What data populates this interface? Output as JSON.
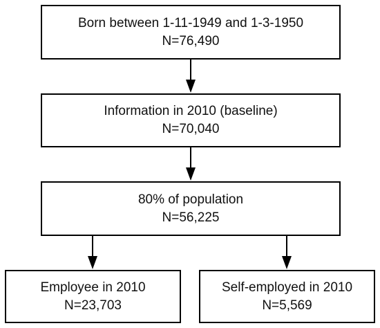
{
  "flowchart": {
    "boxes": {
      "born": {
        "line1": "Born between 1-11-1949 and 1-3-1950",
        "line2": "N=76,490"
      },
      "info": {
        "line1": "Information in 2010 (baseline)",
        "line2": "N=70,040"
      },
      "population": {
        "line1": "80% of population",
        "line2": "N=56,225"
      },
      "employee": {
        "line1": "Employee in 2010",
        "line2": "N=23,703"
      },
      "self_employed": {
        "line1": "Self-employed in 2010",
        "line2": "N=5,569"
      }
    },
    "connections": [
      {
        "from": "born",
        "to": "info"
      },
      {
        "from": "info",
        "to": "population"
      },
      {
        "from": "population",
        "to": "employee"
      },
      {
        "from": "population",
        "to": "self_employed"
      }
    ],
    "colors": {
      "stroke": "#000000",
      "background": "#ffffff",
      "text": "#111111"
    }
  }
}
